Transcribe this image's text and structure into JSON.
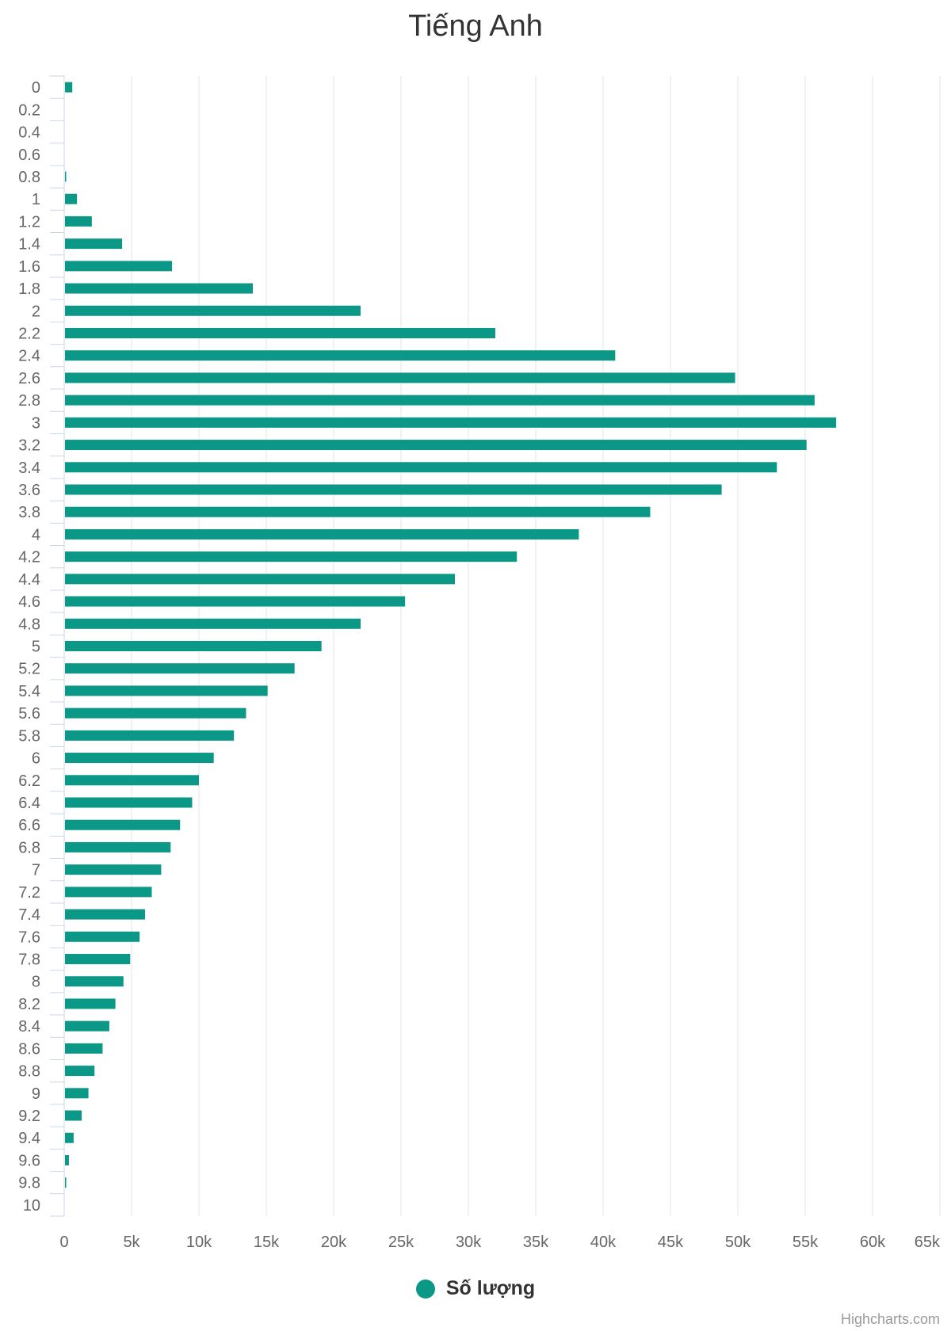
{
  "chart_data": {
    "type": "bar",
    "orientation": "horizontal",
    "title": "Tiếng Anh",
    "xlabel": "",
    "ylabel": "",
    "categories": [
      "0",
      "0.2",
      "0.4",
      "0.6",
      "0.8",
      "1",
      "1.2",
      "1.4",
      "1.6",
      "1.8",
      "2",
      "2.2",
      "2.4",
      "2.6",
      "2.8",
      "3",
      "3.2",
      "3.4",
      "3.6",
      "3.8",
      "4",
      "4.2",
      "4.4",
      "4.6",
      "4.8",
      "5",
      "5.2",
      "5.4",
      "5.6",
      "5.8",
      "6",
      "6.2",
      "6.4",
      "6.6",
      "6.8",
      "7",
      "7.2",
      "7.4",
      "7.6",
      "7.8",
      "8",
      "8.2",
      "8.4",
      "8.6",
      "8.8",
      "9",
      "9.2",
      "9.4",
      "9.6",
      "9.8",
      "10"
    ],
    "series": [
      {
        "name": "Số lượng",
        "values": [
          600,
          0,
          0,
          0,
          100,
          950,
          2050,
          4300,
          8000,
          14000,
          22000,
          32000,
          40900,
          49800,
          55700,
          57300,
          55100,
          52900,
          48800,
          43500,
          38200,
          33600,
          29000,
          25300,
          22000,
          19100,
          17100,
          15100,
          13500,
          12600,
          11100,
          10000,
          9500,
          8600,
          7900,
          7200,
          6500,
          6000,
          5600,
          4900,
          4400,
          3800,
          3350,
          2850,
          2250,
          1800,
          1300,
          700,
          350,
          100,
          0
        ]
      }
    ],
    "value_axis": {
      "min": 0,
      "max": 65000,
      "ticks": [
        "0",
        "5k",
        "10k",
        "15k",
        "20k",
        "25k",
        "30k",
        "35k",
        "40k",
        "45k",
        "50k",
        "55k",
        "60k",
        "65k"
      ]
    },
    "grid": true,
    "legend_position": "bottom-center",
    "colors": {
      "series": "#0b9886",
      "grid": "#e6e6e6",
      "axis": "#ccd6eb"
    }
  },
  "credits": "Highcharts.com"
}
